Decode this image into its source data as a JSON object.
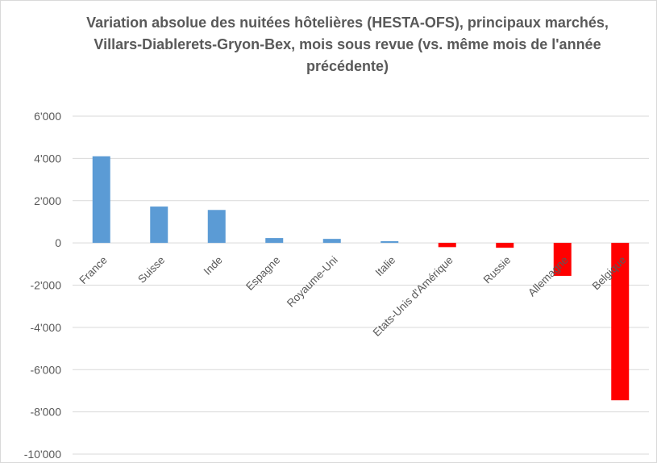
{
  "chart_data": {
    "type": "bar",
    "title": "Variation absolue des nuitées hôtelières (HESTA-OFS), principaux marchés, Villars-Diablerets-Gryon-Bex, mois sous revue (vs. même mois de l'année précédente)",
    "categories": [
      "France",
      "Suisse",
      "Inde",
      "Espagne",
      "Royaume-Uni",
      "Italie",
      "Etats-Unis d'Amérique",
      "Russie",
      "Allemagne",
      "Belgique"
    ],
    "values": [
      4100,
      1720,
      1560,
      230,
      190,
      80,
      -200,
      -230,
      -1560,
      -7450
    ],
    "ylim": [
      -10000,
      6000
    ],
    "yticks": [
      6000,
      4000,
      2000,
      0,
      -2000,
      -4000,
      -6000,
      -8000,
      -10000
    ],
    "ytick_labels": [
      "6'000",
      "4'000",
      "2'000",
      "0",
      "-2'000",
      "-4'000",
      "-6'000",
      "-8'000",
      "-10'000"
    ],
    "colors": {
      "positive": "#5b9bd5",
      "negative": "#ff0000",
      "grid": "#d9d9d9"
    },
    "grid": true,
    "legend": "none"
  }
}
